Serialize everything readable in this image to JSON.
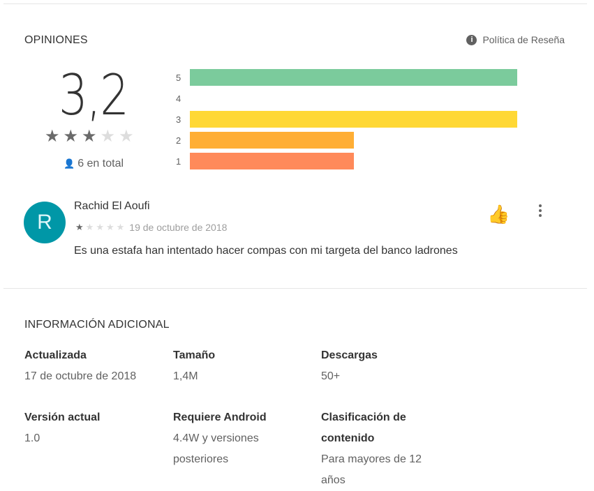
{
  "ratings": {
    "title": "OPINIONES",
    "policy_label": "Política de Reseña",
    "average": "3,2",
    "average_stars": 3.2,
    "total": "6 en total",
    "bars": [
      {
        "label": "5",
        "fraction": 1,
        "color": "#7bcb9c"
      },
      {
        "label": "4",
        "fraction": 0,
        "color": "#a3d96a"
      },
      {
        "label": "3",
        "fraction": 1,
        "color": "#ffd835"
      },
      {
        "label": "2",
        "fraction": 0.5,
        "color": "#ffae35"
      },
      {
        "label": "1",
        "fraction": 0.5,
        "color": "#ff8a5a"
      }
    ]
  },
  "review": {
    "avatar_letter": "R",
    "author": "Rachid El Aoufi",
    "stars": 1,
    "date": "19 de octubre de 2018",
    "text": "Es una estafa han intentado hacer compas con mi targeta del banco ladrones"
  },
  "info": {
    "title": "INFORMACIÓN ADICIONAL",
    "items": [
      {
        "key": "Actualizada",
        "value": "17 de octubre de 2018"
      },
      {
        "key": "Tamaño",
        "value": "1,4M"
      },
      {
        "key": "Descargas",
        "value": "50+"
      },
      {
        "key": "Versión actual",
        "value": "1.0"
      },
      {
        "key": "Requiere Android",
        "value": "4.4W y versiones posteriores"
      },
      {
        "key": "Clasificación de contenido",
        "value": "Para mayores de 12 años"
      }
    ]
  }
}
